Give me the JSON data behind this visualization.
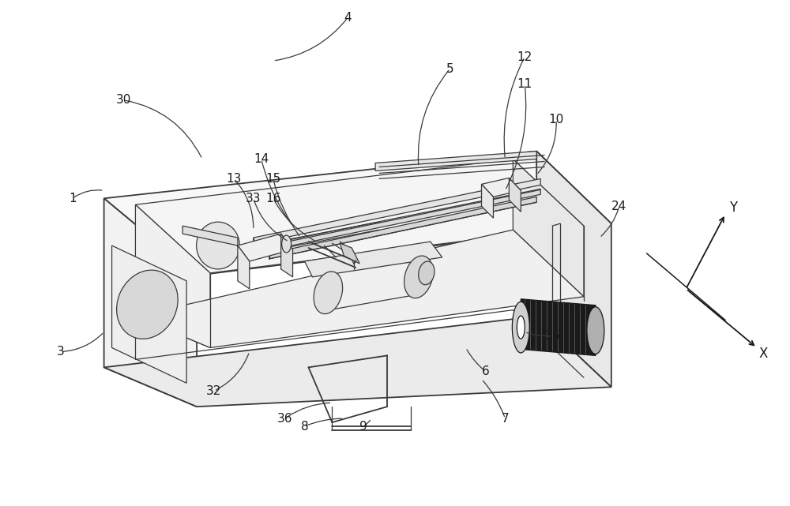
{
  "bg_color": "#ffffff",
  "lc": "#3a3a3a",
  "dc": "#1a1a1a",
  "figsize": [
    10.0,
    6.41
  ],
  "dpi": 100
}
